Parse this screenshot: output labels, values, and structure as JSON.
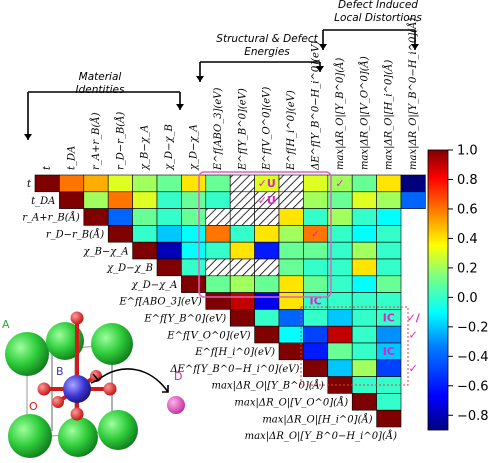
{
  "chart_data": {
    "type": "heatmap",
    "title": "",
    "group_headers": [
      {
        "lines": [
          "Material",
          "Identities"
        ]
      },
      {
        "lines": [
          "Structural & Defect",
          "Energies"
        ]
      },
      {
        "lines": [
          "Defect Induced",
          "Local Distortions"
        ]
      }
    ],
    "row_labels": [
      "t",
      "t_DA",
      "r_A+r_B(Å)",
      "r_D−r_B(Å)",
      "χ_B−χ_A",
      "χ_D−χ_B",
      "χ_D−χ_A",
      "E^f[ABO_3](eV)",
      "E^f[Y_B^0](eV)",
      "E^f[V_O^0](eV)",
      "E^f[H_i^0](eV)",
      "ΔE^f[Y_B^0−H_i^0](eV)",
      "max|ΔR_O|[Y_B^0](Å)",
      "max|ΔR_O|[V_O^0](Å)",
      "max|ΔR_O|[H_i^0](Å)",
      "max|ΔR_O|[Y_B^0−H_i^0](Å)"
    ],
    "col_labels": [
      "t",
      "t_DA",
      "r_A+r_B(Å)",
      "r_D−r_B(Å)",
      "χ_B−χ_A",
      "χ_D−χ_B",
      "χ_D−χ_A",
      "E^f[ABO_3](eV)",
      "E^f[Y_B^0](eV)",
      "E^f[V_O^0](eV)",
      "E^f[H_i^0](eV)",
      "ΔE^f[Y_B^0−H_i^0](eV)",
      "max|ΔR_O|[Y_B^0](Å)",
      "max|ΔR_O|[V_O^0](Å)",
      "max|ΔR_O|[H_i^0](Å)",
      "max|ΔR_O|[Y_B^0−H_i^0](Å)"
    ],
    "upper_values": [
      [
        1.0,
        0.6,
        0.5,
        0.3,
        0.2,
        0.1,
        0.4,
        0.1,
        null,
        0.3,
        null,
        0.3,
        0.2,
        0.1,
        0.4,
        -0.9
      ],
      [
        1.0,
        0.2,
        0.6,
        0.3,
        0.0,
        0.1,
        0.0,
        null,
        null,
        null,
        0.2,
        0.1,
        0.3,
        0.2,
        -0.4
      ],
      [
        1.0,
        -0.4,
        0.1,
        0.0,
        0.1,
        null,
        null,
        null,
        0.4,
        0.0,
        0.2,
        0.0,
        -0.1
      ],
      [
        1.0,
        0.0,
        -0.2,
        -0.1,
        0.6,
        0.0,
        0.4,
        0.2,
        0.6,
        0.0,
        -0.1,
        0.0
      ],
      [
        1.0,
        -0.8,
        -0.1,
        0.0,
        0.4,
        -0.6,
        0.1,
        0.1,
        0.0,
        0.2,
        0.0
      ],
      [
        1.0,
        0.0,
        null,
        null,
        null,
        0.1,
        0.0,
        0.0,
        0.4,
        0.0
      ],
      [
        1.0,
        0.1,
        0.2,
        0.1,
        0.4,
        0.1,
        0.0,
        -0.1,
        0.1
      ],
      [
        1.0,
        0.9,
        -0.7,
        0.4,
        0.0,
        0.0,
        0.0,
        0.0
      ],
      [
        1.0,
        0.0,
        -0.4,
        0.0,
        -0.2,
        0.0,
        0.0
      ],
      [
        1.0,
        -0.1,
        -0.5,
        0.9,
        0.0,
        -0.3
      ],
      [
        1.0,
        -0.6,
        0.1,
        0.0,
        -0.2
      ],
      [
        1.0,
        -0.2,
        0.2,
        -0.5
      ],
      [
        1.0,
        0.0,
        0.0
      ],
      [
        1.0,
        0.0
      ],
      [
        1.0
      ],
      []
    ],
    "marks": [
      {
        "row": 0,
        "col": 9,
        "text": "✓U"
      },
      {
        "row": 0,
        "col": 12,
        "text": "✓"
      },
      {
        "row": 1,
        "col": 9,
        "text": "✓U"
      },
      {
        "row": 3,
        "col": 11,
        "text": "✓"
      },
      {
        "row": 7,
        "col": 11,
        "text": "IC"
      },
      {
        "row": 8,
        "col": 14,
        "text": "IC"
      },
      {
        "row": 8,
        "col": 15,
        "text": "✓/"
      },
      {
        "row": 9,
        "col": 16,
        "text": "✓"
      },
      {
        "row": 10,
        "col": 14,
        "text": "IC"
      },
      {
        "row": 11,
        "col": 18,
        "text": "✓"
      }
    ],
    "colorbar": {
      "min": -0.9,
      "max": 1.0,
      "ticks": [
        1.0,
        0.8,
        0.6,
        0.4,
        0.2,
        0.0,
        -0.2,
        -0.4,
        -0.6,
        -0.8
      ],
      "colormap": [
        "#00007f",
        "#0000ff",
        "#007fff",
        "#00ffff",
        "#7fff7f",
        "#ffff00",
        "#ff7f00",
        "#ff0000",
        "#7f0000"
      ]
    }
  },
  "legend_structure": {
    "site_labels": [
      "A",
      "B",
      "O",
      "D"
    ]
  }
}
